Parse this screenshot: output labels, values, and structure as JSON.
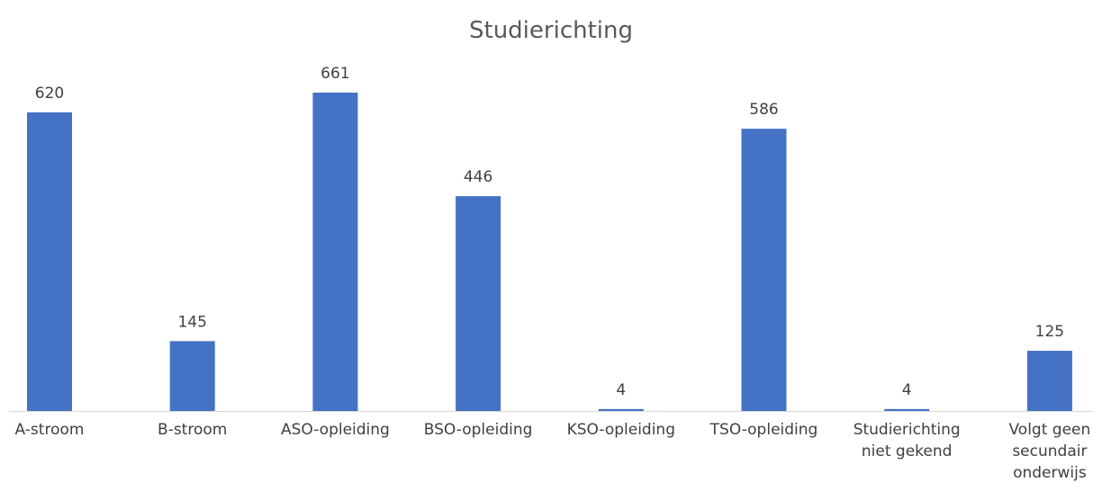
{
  "chart_data": {
    "type": "bar",
    "title": "Studierichting",
    "categories": [
      "A-stroom",
      "B-stroom",
      "ASO-opleiding",
      "BSO-opleiding",
      "KSO-opleiding",
      "TSO-opleiding",
      "Studierichting niet gekend",
      "Volgt geen secundair onderwijs"
    ],
    "values": [
      620,
      145,
      661,
      446,
      4,
      586,
      4,
      125
    ],
    "color": "#4472c4"
  }
}
